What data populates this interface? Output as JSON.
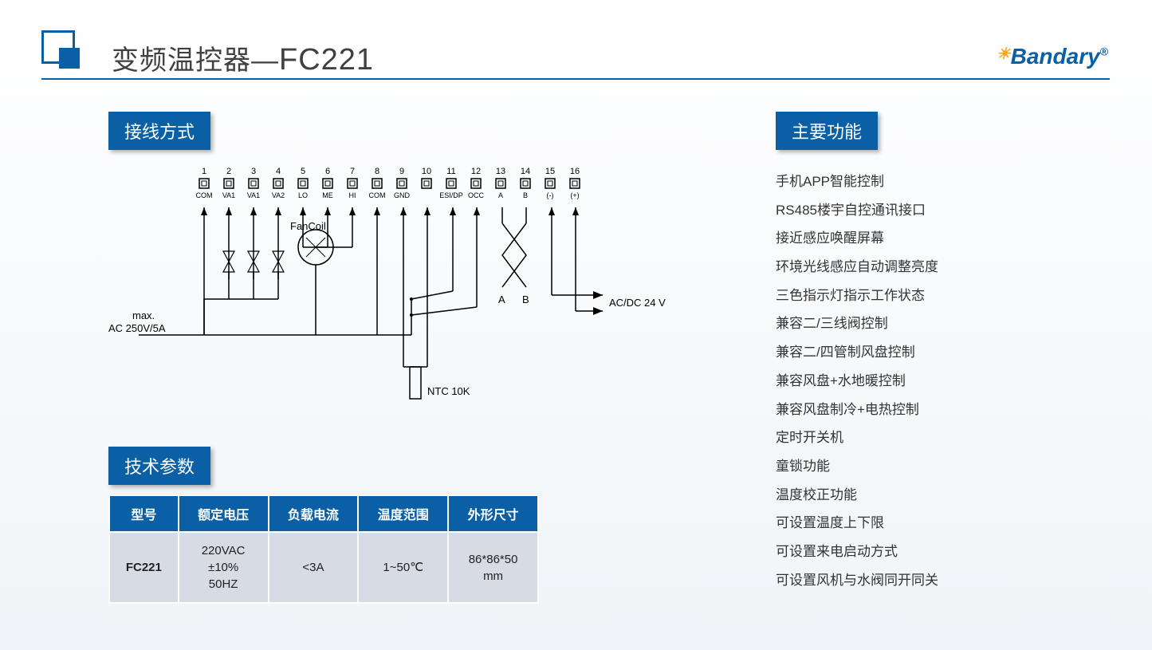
{
  "header": {
    "title_prefix": "变频温控器—",
    "title_model": "FC221",
    "logo_text": "Bandary"
  },
  "sections": {
    "wiring_label": "接线方式",
    "spec_label": "技术参数",
    "features_label": "主要功能"
  },
  "wiring": {
    "terminals": [
      {
        "n": "1",
        "lbl": "COM"
      },
      {
        "n": "2",
        "lbl": "VA1"
      },
      {
        "n": "3",
        "lbl": "VA1"
      },
      {
        "n": "4",
        "lbl": "VA2"
      },
      {
        "n": "5",
        "lbl": "LO"
      },
      {
        "n": "6",
        "lbl": "ME"
      },
      {
        "n": "7",
        "lbl": "HI"
      },
      {
        "n": "8",
        "lbl": "COM"
      },
      {
        "n": "9",
        "lbl": "GND"
      },
      {
        "n": "10",
        "lbl": ""
      },
      {
        "n": "11",
        "lbl": "ESI/DP"
      },
      {
        "n": "12",
        "lbl": "OCC"
      },
      {
        "n": "13",
        "lbl": "A"
      },
      {
        "n": "14",
        "lbl": "B"
      },
      {
        "n": "15",
        "lbl": "(-)"
      },
      {
        "n": "16",
        "lbl": "(+)"
      }
    ],
    "fan_label": "FanCoil",
    "max_label1": "max.",
    "max_label2": "AC 250V/5A",
    "ntc_label": "NTC 10K",
    "ab_a": "A",
    "ab_b": "B",
    "power_label": "AC/DC 24 V",
    "colors": {
      "stroke": "#000000",
      "fill": "#ffffff"
    }
  },
  "spec_table": {
    "columns": [
      "型号",
      "额定电压",
      "负载电流",
      "温度范围",
      "外形尺寸"
    ],
    "rows": [
      [
        "FC221",
        "220VAC\n±10%\n50HZ",
        "<3A",
        "1~50℃",
        "86*86*50\nmm"
      ]
    ],
    "header_bg": "#0b5fa5",
    "header_fg": "#ffffff",
    "cell_bg": "#d6dbe4",
    "cell_fg": "#222222"
  },
  "features": [
    "手机APP智能控制",
    "RS485楼宇自控通讯接口",
    "接近感应唤醒屏幕",
    "环境光线感应自动调整亮度",
    "三色指示灯指示工作状态",
    "兼容二/三线阀控制",
    "兼容二/四管制风盘控制",
    "兼容风盘+水地暖控制",
    "兼容风盘制冷+电热控制",
    "定时开关机",
    "童锁功能",
    "温度校正功能",
    "可设置温度上下限",
    "可设置来电启动方式",
    "可设置风机与水阀同开同关"
  ]
}
